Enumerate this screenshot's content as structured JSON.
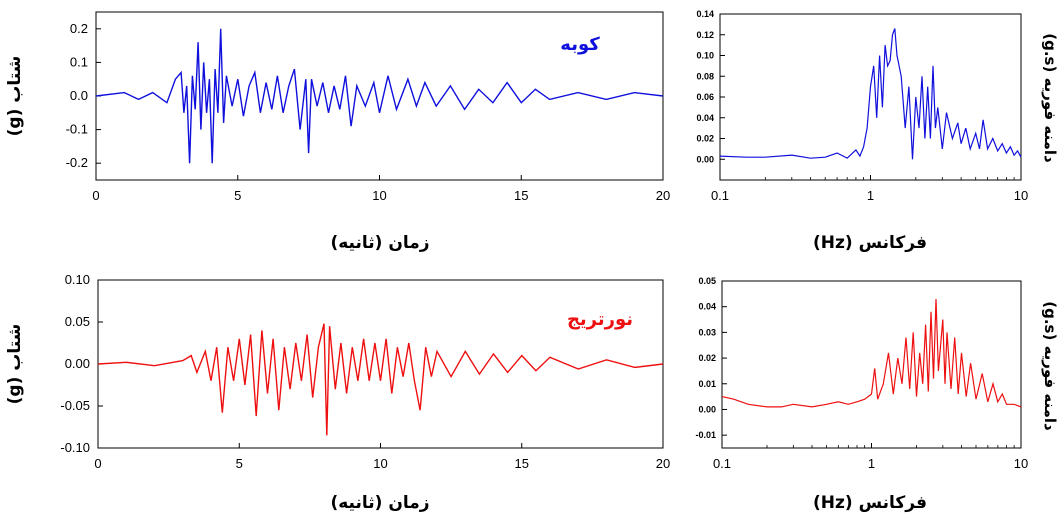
{
  "chart_data": [
    {
      "id": "kobe_time",
      "type": "line",
      "title": "کوبه",
      "color": "#1010dd",
      "xlabel": "زمان (ثانیه)",
      "ylabel": "شتاب (g)",
      "xlim": [
        0,
        20
      ],
      "ylim": [
        -0.25,
        0.25
      ],
      "xticks": [
        0,
        5,
        10,
        15,
        20
      ],
      "xticklabels": [
        "0",
        "5",
        "10",
        "15",
        "20"
      ],
      "yticks": [
        -0.2,
        -0.1,
        0.0,
        0.1,
        0.2
      ],
      "yticklabels": [
        "-0.2",
        "-0.1",
        "0.0",
        "0.1",
        "0.2"
      ],
      "series": [
        {
          "x": [
            0,
            1,
            1.5,
            2,
            2.5,
            2.8,
            3.0,
            3.1,
            3.2,
            3.3,
            3.4,
            3.5,
            3.6,
            3.7,
            3.8,
            3.9,
            4.0,
            4.1,
            4.2,
            4.3,
            4.4,
            4.5,
            4.6,
            4.8,
            5.0,
            5.2,
            5.4,
            5.6,
            5.8,
            6.0,
            6.2,
            6.4,
            6.6,
            6.8,
            7.0,
            7.2,
            7.4,
            7.5,
            7.6,
            7.8,
            8.0,
            8.2,
            8.4,
            8.6,
            8.8,
            9.0,
            9.2,
            9.5,
            9.8,
            10.0,
            10.3,
            10.6,
            11.0,
            11.3,
            11.6,
            12.0,
            12.5,
            13.0,
            13.5,
            14.0,
            14.5,
            15.0,
            15.5,
            16.0,
            17.0,
            18.0,
            19.0,
            20.0
          ],
          "y": [
            0,
            0.01,
            -0.01,
            0.01,
            -0.02,
            0.05,
            0.07,
            -0.05,
            0.03,
            -0.2,
            0.06,
            -0.04,
            0.16,
            -0.1,
            0.1,
            -0.05,
            0.05,
            -0.2,
            0.08,
            -0.05,
            0.2,
            -0.08,
            0.06,
            -0.03,
            0.05,
            -0.06,
            0.03,
            0.07,
            -0.05,
            0.04,
            -0.04,
            0.06,
            -0.05,
            0.03,
            0.08,
            -0.1,
            0.05,
            -0.17,
            0.05,
            -0.03,
            0.04,
            -0.05,
            0.03,
            -0.04,
            0.06,
            -0.09,
            0.03,
            -0.03,
            0.04,
            -0.05,
            0.06,
            -0.04,
            0.05,
            -0.03,
            0.04,
            -0.03,
            0.03,
            -0.04,
            0.02,
            -0.02,
            0.04,
            -0.02,
            0.02,
            -0.01,
            0.01,
            -0.01,
            0.01,
            0
          ]
        }
      ]
    },
    {
      "id": "kobe_fourier",
      "type": "line",
      "color": "#1010dd",
      "xlabel": "فرکانس (Hz)",
      "ylabel": "دامنه فوریه (g.s)",
      "xscale": "log",
      "xlim": [
        0.1,
        10
      ],
      "ylim": [
        -0.02,
        0.14
      ],
      "xticks": [
        0.1,
        1,
        10
      ],
      "xticklabels": [
        "0.1",
        "1",
        "10"
      ],
      "yticks": [
        0.0,
        0.02,
        0.04,
        0.06,
        0.08,
        0.1,
        0.12,
        0.14
      ],
      "yticklabels": [
        "0.00",
        "0.02",
        "0.04",
        "0.06",
        "0.08",
        "0.10",
        "0.12",
        "0.14"
      ],
      "series": [
        {
          "x": [
            0.1,
            0.15,
            0.2,
            0.3,
            0.4,
            0.5,
            0.6,
            0.7,
            0.8,
            0.85,
            0.9,
            0.95,
            1.0,
            1.05,
            1.1,
            1.15,
            1.2,
            1.25,
            1.3,
            1.35,
            1.4,
            1.45,
            1.5,
            1.6,
            1.7,
            1.8,
            1.9,
            2.0,
            2.1,
            2.2,
            2.3,
            2.4,
            2.5,
            2.6,
            2.7,
            2.8,
            3.0,
            3.2,
            3.5,
            3.8,
            4.0,
            4.3,
            4.6,
            5.0,
            5.3,
            5.6,
            6.0,
            6.5,
            7.0,
            7.5,
            8.0,
            8.5,
            9.0,
            9.5,
            10.0
          ],
          "y": [
            0.003,
            0.002,
            0.002,
            0.004,
            0.001,
            0.002,
            0.006,
            0.001,
            0.009,
            0.003,
            0.012,
            0.03,
            0.07,
            0.09,
            0.04,
            0.1,
            0.05,
            0.11,
            0.09,
            0.095,
            0.12,
            0.126,
            0.1,
            0.08,
            0.03,
            0.07,
            0.0,
            0.06,
            0.03,
            0.08,
            0.02,
            0.07,
            0.02,
            0.09,
            0.03,
            0.05,
            0.01,
            0.045,
            0.02,
            0.035,
            0.015,
            0.03,
            0.01,
            0.025,
            0.01,
            0.038,
            0.01,
            0.02,
            0.008,
            0.015,
            0.006,
            0.012,
            0.004,
            0.008,
            0.002
          ]
        }
      ]
    },
    {
      "id": "northridge_time",
      "type": "line",
      "title": "نورتریج",
      "color": "#ee1010",
      "xlabel": "زمان (ثانیه)",
      "ylabel": "شتاب (g)",
      "xlim": [
        0,
        20
      ],
      "ylim": [
        -0.1,
        0.1
      ],
      "xticks": [
        0,
        5,
        10,
        15,
        20
      ],
      "xticklabels": [
        "0",
        "5",
        "10",
        "15",
        "20"
      ],
      "yticks": [
        -0.1,
        -0.05,
        0.0,
        0.05,
        0.1
      ],
      "yticklabels": [
        "-0.10",
        "-0.05",
        "0.00",
        "0.05",
        "0.10"
      ],
      "series": [
        {
          "x": [
            0,
            1,
            2,
            3,
            3.3,
            3.5,
            3.8,
            4.0,
            4.2,
            4.4,
            4.6,
            4.8,
            5.0,
            5.2,
            5.4,
            5.6,
            5.8,
            6.0,
            6.2,
            6.4,
            6.6,
            6.8,
            7.0,
            7.2,
            7.4,
            7.6,
            7.8,
            8.0,
            8.1,
            8.2,
            8.4,
            8.6,
            8.8,
            9.0,
            9.2,
            9.4,
            9.6,
            9.8,
            10.0,
            10.2,
            10.4,
            10.6,
            10.8,
            11.0,
            11.2,
            11.4,
            11.6,
            11.8,
            12.0,
            12.5,
            13.0,
            13.5,
            14.0,
            14.5,
            15.0,
            15.5,
            16.0,
            17.0,
            18.0,
            19.0,
            20.0
          ],
          "y": [
            0,
            0.002,
            -0.002,
            0.004,
            0.01,
            -0.01,
            0.015,
            -0.02,
            0.02,
            -0.058,
            0.02,
            -0.02,
            0.03,
            -0.025,
            0.035,
            -0.062,
            0.04,
            -0.035,
            0.03,
            -0.055,
            0.02,
            -0.03,
            0.025,
            -0.02,
            0.035,
            -0.04,
            0.02,
            0.048,
            -0.085,
            0.045,
            -0.03,
            0.025,
            -0.035,
            0.02,
            -0.02,
            0.03,
            -0.02,
            0.025,
            -0.02,
            0.03,
            -0.035,
            0.02,
            -0.015,
            0.025,
            -0.02,
            -0.055,
            0.02,
            -0.015,
            0.015,
            -0.015,
            0.015,
            -0.012,
            0.012,
            -0.01,
            0.01,
            -0.008,
            0.008,
            -0.006,
            0.005,
            -0.004,
            0
          ]
        }
      ]
    },
    {
      "id": "northridge_fourier",
      "type": "line",
      "color": "#ee1010",
      "xlabel": "فرکانس (Hz)",
      "ylabel": "دامنه فوریه (g.s)",
      "xscale": "log",
      "xlim": [
        0.1,
        10
      ],
      "ylim": [
        -0.015,
        0.05
      ],
      "xticks": [
        0.1,
        1,
        10
      ],
      "xticklabels": [
        "0.1",
        "1",
        "10"
      ],
      "yticks": [
        -0.01,
        0.0,
        0.01,
        0.02,
        0.03,
        0.04,
        0.05
      ],
      "yticklabels": [
        "-0.01",
        "0.00",
        "0.01",
        "0.02",
        "0.03",
        "0.04",
        "0.05"
      ],
      "series": [
        {
          "x": [
            0.1,
            0.12,
            0.15,
            0.2,
            0.25,
            0.3,
            0.4,
            0.5,
            0.6,
            0.7,
            0.8,
            0.9,
            1.0,
            1.05,
            1.1,
            1.2,
            1.3,
            1.4,
            1.5,
            1.6,
            1.7,
            1.8,
            1.9,
            2.0,
            2.1,
            2.2,
            2.3,
            2.4,
            2.5,
            2.6,
            2.7,
            2.8,
            2.9,
            3.0,
            3.1,
            3.2,
            3.4,
            3.6,
            3.8,
            4.0,
            4.3,
            4.6,
            5.0,
            5.5,
            6.0,
            6.5,
            7.0,
            7.5,
            8.0,
            9.0,
            10.0
          ],
          "y": [
            0.005,
            0.004,
            0.002,
            0.001,
            0.001,
            0.002,
            0.001,
            0.002,
            0.003,
            0.002,
            0.003,
            0.004,
            0.006,
            0.016,
            0.004,
            0.01,
            0.022,
            0.006,
            0.02,
            0.01,
            0.028,
            0.008,
            0.03,
            0.005,
            0.022,
            0.01,
            0.033,
            0.007,
            0.038,
            0.012,
            0.043,
            0.015,
            0.025,
            0.035,
            0.01,
            0.03,
            0.008,
            0.028,
            0.006,
            0.022,
            0.005,
            0.018,
            0.004,
            0.014,
            0.003,
            0.01,
            0.003,
            0.006,
            0.002,
            0.002,
            0.001
          ]
        }
      ]
    }
  ]
}
